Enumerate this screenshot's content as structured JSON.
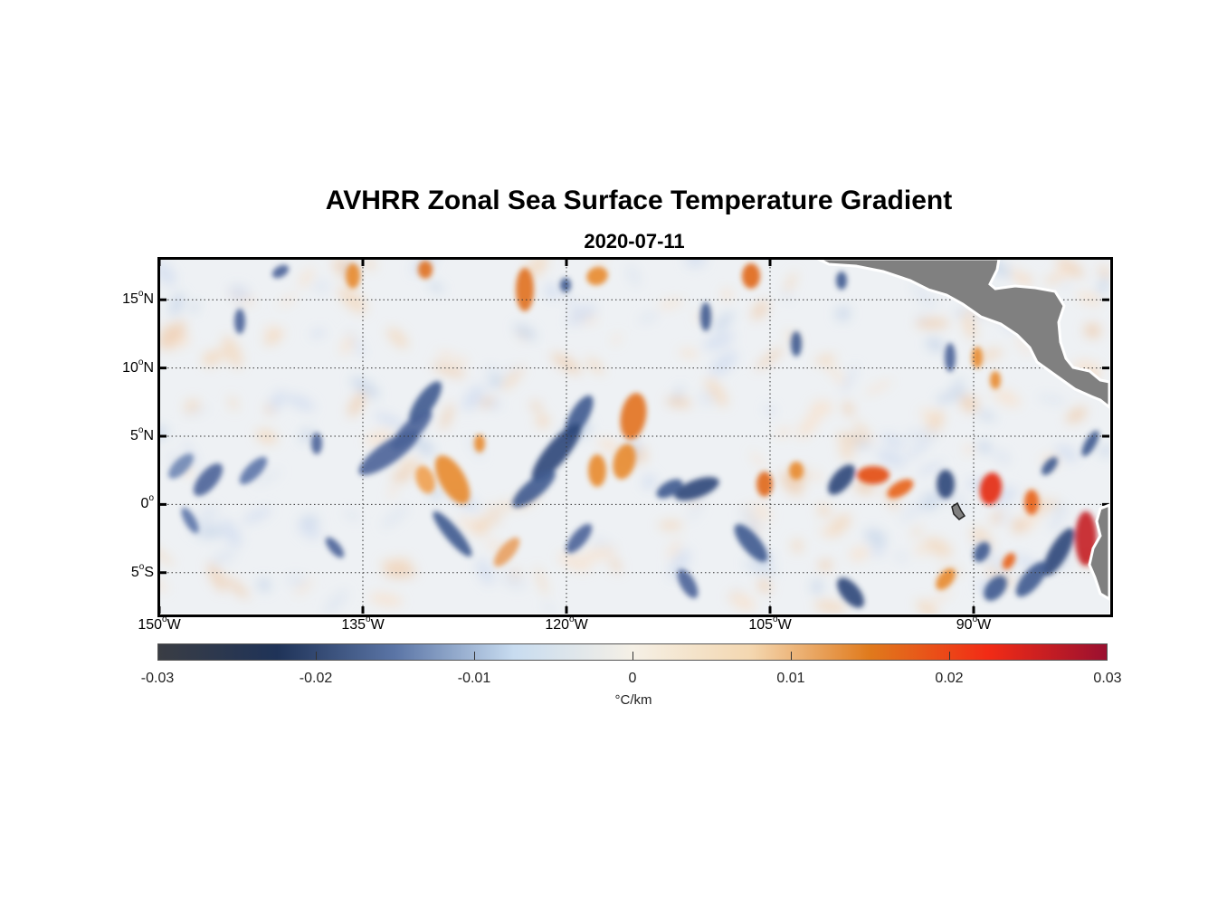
{
  "title": "AVHRR Zonal Sea Surface Temperature Gradient",
  "subtitle": "2020-07-11",
  "map": {
    "lon_range": [
      -150,
      -80
    ],
    "lat_range": [
      -8,
      18
    ],
    "lat_ticks": [
      {
        "value": 15,
        "num": "15",
        "hemi": "N"
      },
      {
        "value": 10,
        "num": "10",
        "hemi": "N"
      },
      {
        "value": 5,
        "num": "5",
        "hemi": "N"
      },
      {
        "value": 0,
        "num": "0",
        "hemi": ""
      },
      {
        "value": -5,
        "num": "5",
        "hemi": "S"
      }
    ],
    "lon_ticks": [
      {
        "value": -150,
        "num": "150",
        "hemi": "W"
      },
      {
        "value": -135,
        "num": "135",
        "hemi": "W"
      },
      {
        "value": -120,
        "num": "120",
        "hemi": "W"
      },
      {
        "value": -105,
        "num": "105",
        "hemi": "W"
      },
      {
        "value": -90,
        "num": "90",
        "hemi": "W"
      }
    ],
    "land_color": "#808080",
    "gridlines": true
  },
  "colorbar": {
    "min": -0.03,
    "max": 0.03,
    "ticks": [
      "-0.03",
      "-0.02",
      "-0.01",
      "0",
      "0.01",
      "0.02",
      "0.03"
    ],
    "unit": "°C/km",
    "colors": [
      "#3a3d44",
      "#1f3358",
      "#5b75a6",
      "#c8dcf0",
      "#f5f0e6",
      "#f4d7b0",
      "#e07a1c",
      "#f22b15",
      "#9a1030"
    ]
  }
}
